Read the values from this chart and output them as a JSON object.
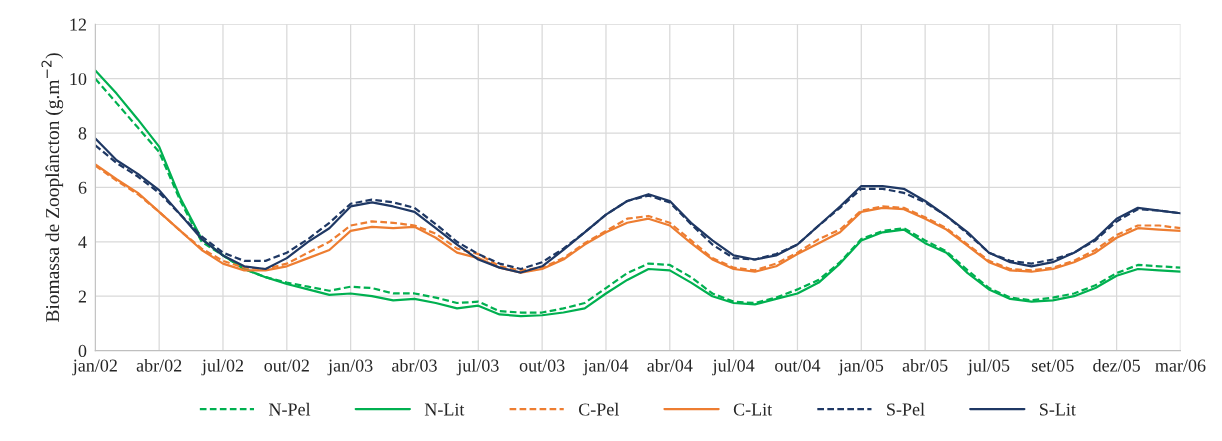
{
  "chart_data": {
    "type": "line",
    "ylabel": "Biomassa de Zooplâncton (g.m$^{−2}$)",
    "categories": [
      "jan/02",
      null,
      null,
      "abr/02",
      null,
      null,
      "jul/02",
      null,
      null,
      "out/02",
      null,
      null,
      "jan/03",
      null,
      null,
      "abr/03",
      null,
      null,
      "jul/03",
      null,
      null,
      "out/03",
      null,
      null,
      "jan/04",
      null,
      null,
      "abr/04",
      null,
      null,
      "jul/04",
      null,
      null,
      "out/04",
      null,
      null,
      "jan/05",
      null,
      null,
      "abr/05",
      null,
      null,
      "jul/05",
      null,
      null,
      "set/05",
      null,
      null,
      "dez/05",
      null,
      null,
      "mar/06"
    ],
    "ylim": [
      0,
      12
    ],
    "yticks": [
      0,
      2,
      4,
      6,
      8,
      10,
      12
    ],
    "grid": true,
    "legend": "bottom",
    "marker": "none",
    "series": [
      {
        "name": "N-Pel",
        "color": "#00b050",
        "line_style": "dashed",
        "values": [
          10.0,
          9.1,
          8.2,
          7.3,
          5.5,
          4.0,
          3.5,
          3.0,
          2.7,
          2.5,
          2.35,
          2.2,
          2.35,
          2.3,
          2.1,
          2.1,
          1.95,
          1.75,
          1.8,
          1.45,
          1.4,
          1.4,
          1.55,
          1.75,
          2.3,
          2.85,
          3.2,
          3.15,
          2.7,
          2.1,
          1.8,
          1.75,
          1.95,
          2.25,
          2.6,
          3.25,
          4.1,
          4.4,
          4.5,
          4.05,
          3.65,
          2.95,
          2.3,
          1.95,
          1.85,
          1.95,
          2.1,
          2.4,
          2.85,
          3.15,
          3.1,
          3.05
        ]
      },
      {
        "name": "N-Lit",
        "color": "#00b050",
        "line_style": "solid",
        "values": [
          10.3,
          9.45,
          8.5,
          7.5,
          5.6,
          4.1,
          3.5,
          3.0,
          2.7,
          2.45,
          2.25,
          2.05,
          2.1,
          2.0,
          1.85,
          1.9,
          1.75,
          1.55,
          1.65,
          1.33,
          1.27,
          1.3,
          1.4,
          1.55,
          2.1,
          2.6,
          3.0,
          2.95,
          2.5,
          2.0,
          1.75,
          1.7,
          1.9,
          2.1,
          2.5,
          3.2,
          4.05,
          4.35,
          4.45,
          3.95,
          3.6,
          2.85,
          2.25,
          1.9,
          1.8,
          1.85,
          2.0,
          2.3,
          2.75,
          3.0,
          2.95,
          2.9
        ]
      },
      {
        "name": "C-Pel",
        "color": "#ed7d31",
        "line_style": "dashed",
        "values": [
          6.8,
          6.25,
          5.75,
          5.1,
          4.4,
          3.75,
          3.3,
          3.05,
          3.0,
          3.2,
          3.6,
          4.0,
          4.6,
          4.75,
          4.7,
          4.6,
          4.3,
          3.75,
          3.55,
          3.1,
          2.95,
          3.05,
          3.4,
          3.95,
          4.4,
          4.85,
          4.95,
          4.7,
          4.05,
          3.4,
          3.05,
          2.95,
          3.2,
          3.6,
          4.1,
          4.45,
          5.15,
          5.3,
          5.25,
          4.9,
          4.5,
          3.9,
          3.3,
          3.0,
          2.95,
          3.05,
          3.3,
          3.7,
          4.25,
          4.6,
          4.6,
          4.5
        ]
      },
      {
        "name": "C-Lit",
        "color": "#ed7d31",
        "line_style": "solid",
        "values": [
          6.85,
          6.3,
          5.8,
          5.1,
          4.4,
          3.7,
          3.2,
          2.95,
          2.95,
          3.1,
          3.4,
          3.7,
          4.4,
          4.55,
          4.5,
          4.55,
          4.15,
          3.6,
          3.4,
          3.05,
          2.87,
          3.0,
          3.35,
          3.9,
          4.35,
          4.7,
          4.85,
          4.6,
          3.95,
          3.35,
          3.0,
          2.9,
          3.1,
          3.55,
          3.95,
          4.35,
          5.1,
          5.25,
          5.2,
          4.85,
          4.45,
          3.85,
          3.25,
          2.95,
          2.9,
          3.0,
          3.25,
          3.6,
          4.15,
          4.5,
          4.45,
          4.4
        ]
      },
      {
        "name": "S-Pel",
        "color": "#1f3864",
        "line_style": "dashed",
        "values": [
          7.55,
          6.9,
          6.4,
          5.8,
          5.0,
          4.2,
          3.6,
          3.3,
          3.3,
          3.6,
          4.1,
          4.7,
          5.4,
          5.55,
          5.45,
          5.25,
          4.65,
          4.0,
          3.55,
          3.2,
          3.0,
          3.25,
          3.75,
          4.35,
          5.0,
          5.5,
          5.7,
          5.45,
          4.65,
          3.9,
          3.4,
          3.35,
          3.55,
          3.9,
          4.6,
          5.25,
          5.95,
          5.95,
          5.8,
          5.45,
          4.95,
          4.3,
          3.6,
          3.3,
          3.2,
          3.35,
          3.6,
          4.05,
          4.75,
          5.2,
          5.15,
          5.05
        ]
      },
      {
        "name": "S-Lit",
        "color": "#1f3864",
        "line_style": "solid",
        "values": [
          7.8,
          7.0,
          6.5,
          5.9,
          5.0,
          4.1,
          3.5,
          3.1,
          3.0,
          3.4,
          4.0,
          4.5,
          5.3,
          5.45,
          5.3,
          5.1,
          4.5,
          3.9,
          3.35,
          3.05,
          2.87,
          3.1,
          3.7,
          4.35,
          5.0,
          5.5,
          5.75,
          5.5,
          4.7,
          4.05,
          3.5,
          3.35,
          3.5,
          3.9,
          4.6,
          5.3,
          6.05,
          6.05,
          5.95,
          5.5,
          4.95,
          4.35,
          3.6,
          3.25,
          3.1,
          3.25,
          3.6,
          4.1,
          4.85,
          5.25,
          5.15,
          5.05
        ]
      }
    ]
  }
}
